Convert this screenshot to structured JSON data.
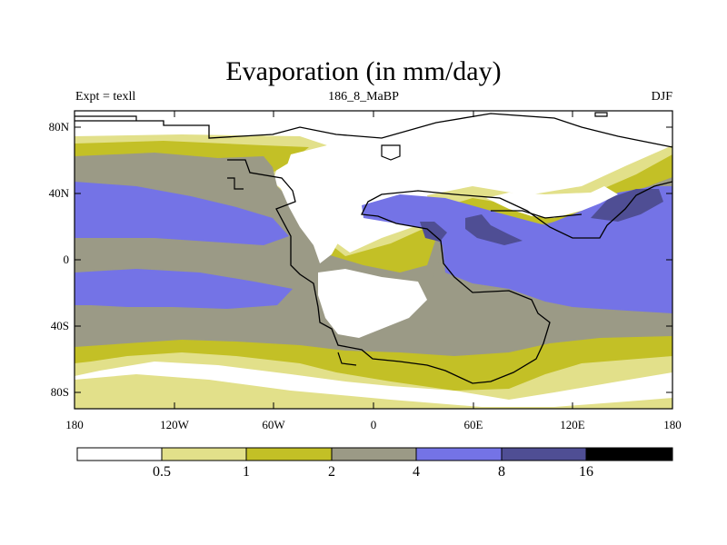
{
  "title": "Evaporation (in mm/day)",
  "left_label": "Expt = texll",
  "center_label": "186_8_MaBP",
  "right_label": "DJF",
  "lat_labels": [
    "80N",
    "40N",
    "0",
    "40S",
    "80S"
  ],
  "lon_labels": [
    "180",
    "120W",
    "60W",
    "0",
    "60E",
    "120E",
    "180"
  ],
  "colorbar": {
    "levels": [
      "0.5",
      "1",
      "2",
      "4",
      "8",
      "16"
    ],
    "colors": [
      "#ffffff",
      "#e2e08a",
      "#c3c026",
      "#9b9a86",
      "#7473e6",
      "#4f4e94",
      "#000000"
    ]
  }
}
